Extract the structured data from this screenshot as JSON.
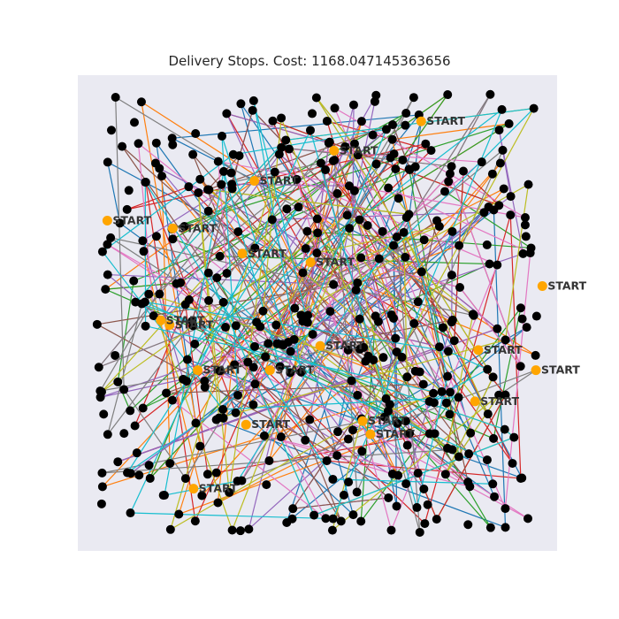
{
  "title": "Delivery Stops. Cost: 1168.047145363656",
  "colors": {
    "plot_background": "#eaeaf2",
    "stop": "#000000",
    "start": "#ffa500",
    "routes": [
      "#1f77b4",
      "#ff7f0e",
      "#2ca02c",
      "#d62728",
      "#9467bd",
      "#8c564b",
      "#e377c2",
      "#7f7f7f",
      "#bcbd22",
      "#17becf"
    ]
  },
  "chart_data": {
    "type": "scatter",
    "title": "Delivery Stops. Cost: 1168.047145363656",
    "xlim": [
      -2,
      102
    ],
    "ylim": [
      -2,
      102
    ],
    "grid": false,
    "axis_ticks": false,
    "point_label": "START",
    "starts": [
      {
        "x": 72.5,
        "y": 91.9
      },
      {
        "x": 53.6,
        "y": 85.5
      },
      {
        "x": 36.3,
        "y": 78.9
      },
      {
        "x": 4.4,
        "y": 70.2
      },
      {
        "x": 18.6,
        "y": 68.5
      },
      {
        "x": 33.7,
        "y": 63.0
      },
      {
        "x": 48.5,
        "y": 61.1
      },
      {
        "x": 98.8,
        "y": 55.9
      },
      {
        "x": 16.0,
        "y": 48.4
      },
      {
        "x": 17.9,
        "y": 47.4
      },
      {
        "x": 50.6,
        "y": 42.8
      },
      {
        "x": 84.9,
        "y": 41.9
      },
      {
        "x": 24.0,
        "y": 37.5
      },
      {
        "x": 39.7,
        "y": 37.5
      },
      {
        "x": 97.4,
        "y": 37.5
      },
      {
        "x": 84.2,
        "y": 30.7
      },
      {
        "x": 59.8,
        "y": 26.4
      },
      {
        "x": 34.5,
        "y": 25.6
      },
      {
        "x": 61.5,
        "y": 23.5
      },
      {
        "x": 23.1,
        "y": 11.6
      }
    ],
    "stops_count": 400,
    "routes_count": 10
  }
}
